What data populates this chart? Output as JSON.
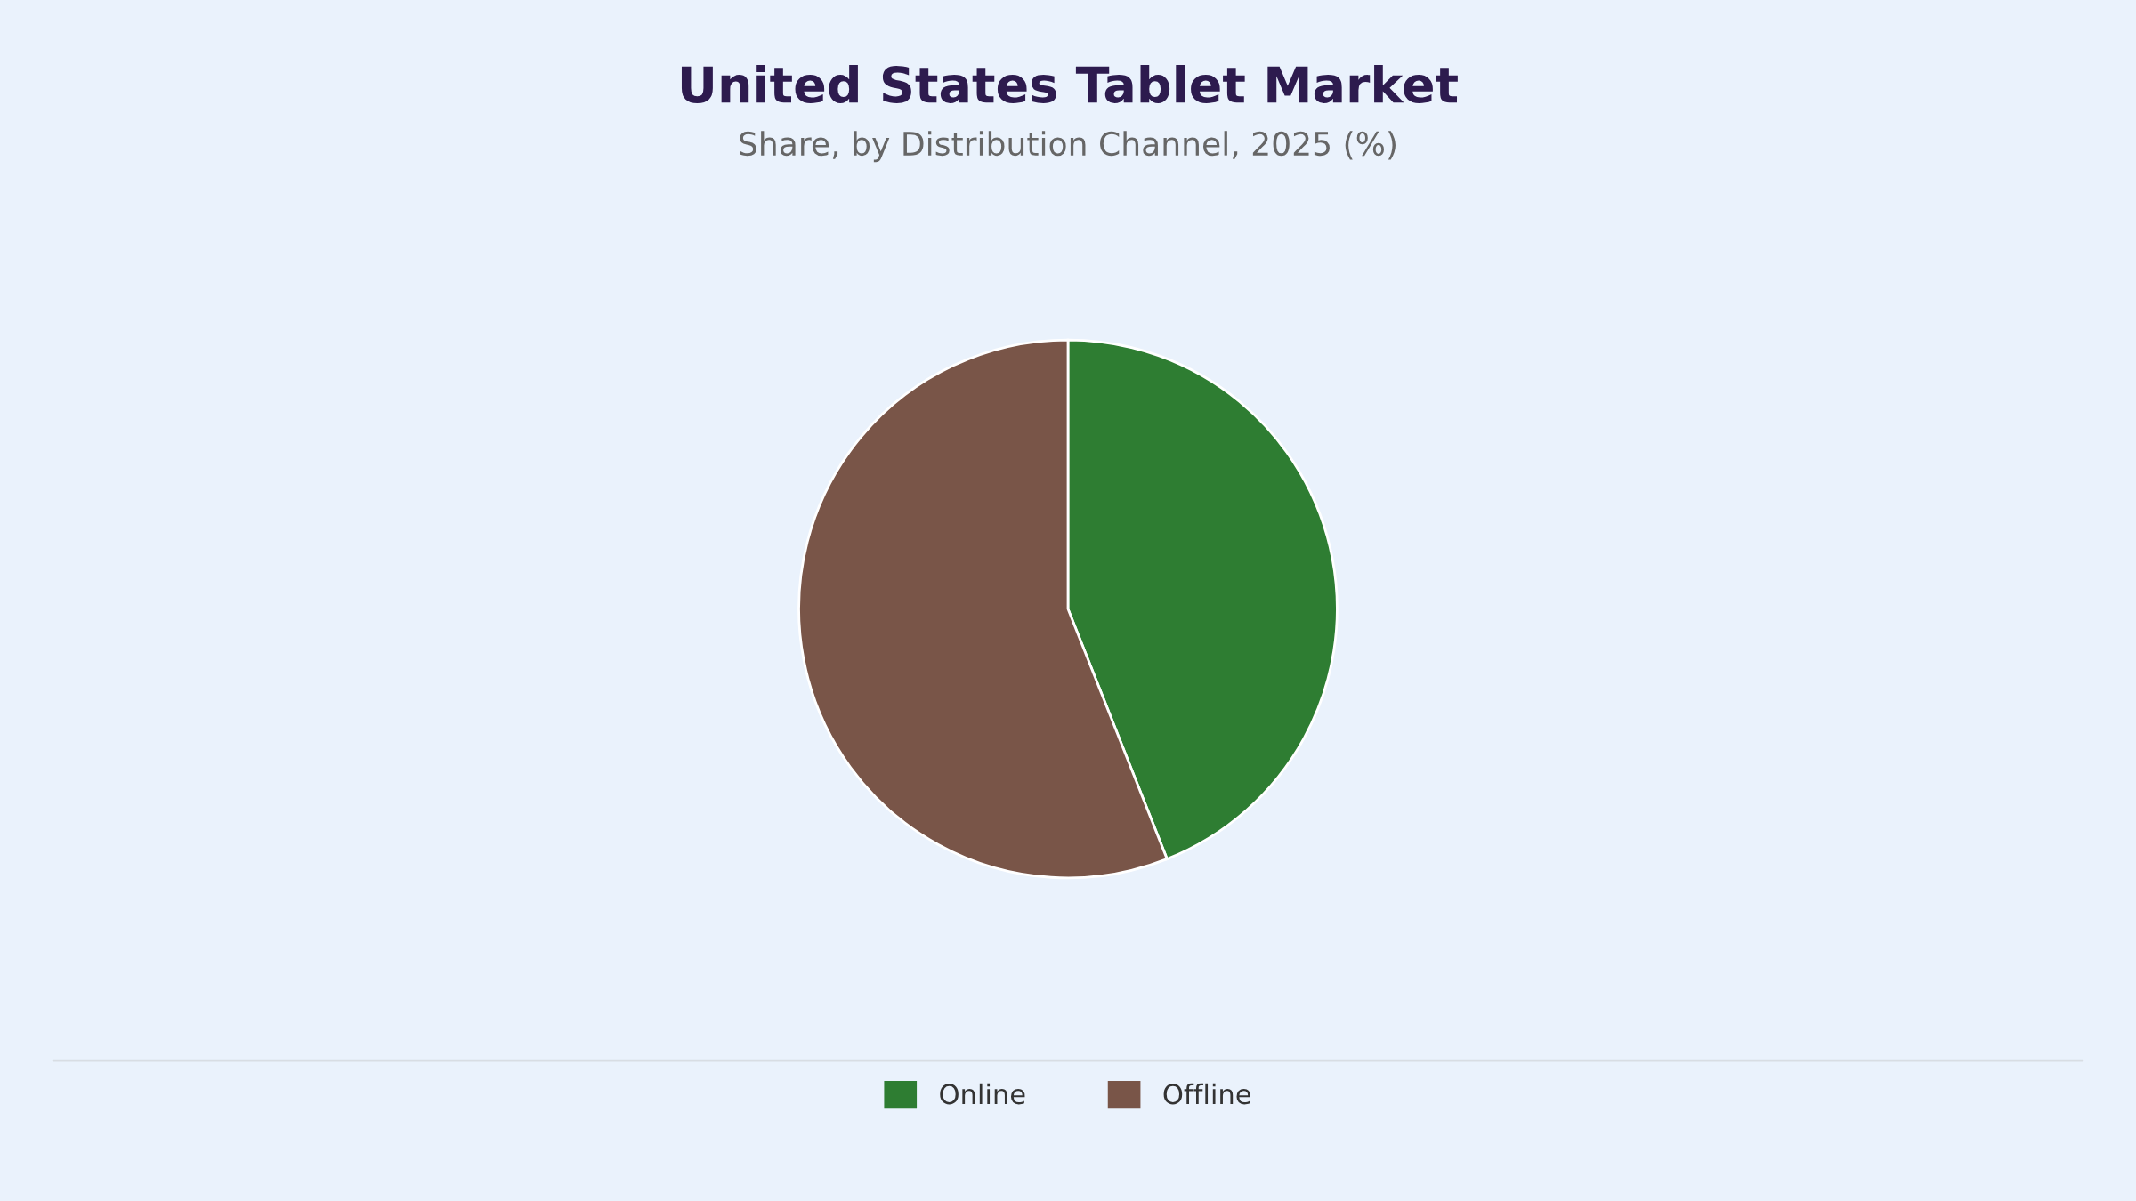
{
  "chart_data": {
    "type": "pie",
    "title": "United States Tablet Market",
    "subtitle": "Share, by Distribution Channel, 2025 (%)",
    "categories": [
      "Online",
      "Offline"
    ],
    "values": [
      44,
      56
    ],
    "colors": [
      "#2e7d32",
      "#795548"
    ],
    "legend": "bottom"
  }
}
